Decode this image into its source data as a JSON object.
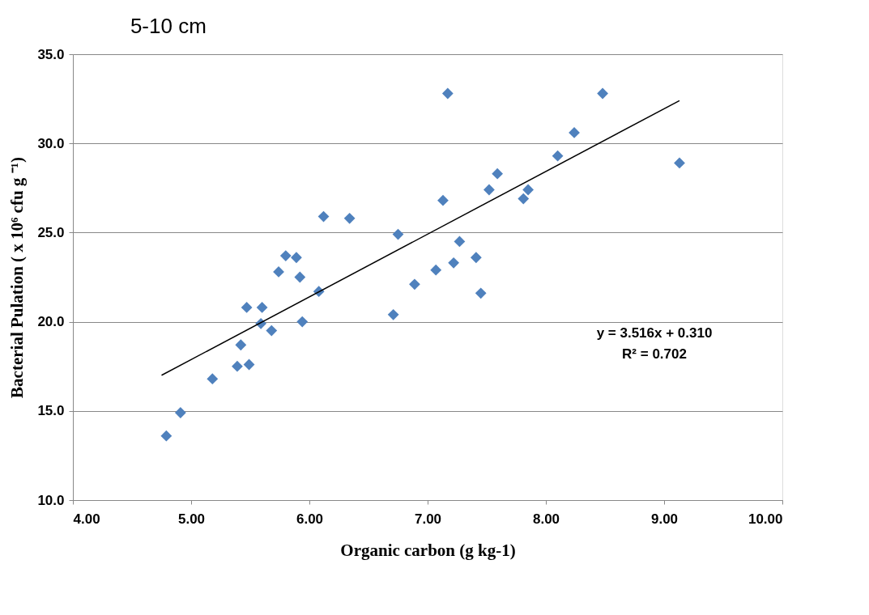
{
  "chart_data": {
    "type": "scatter",
    "title": "5-10 cm",
    "xlabel": "Organic carbon (g kg-1)",
    "ylabel": "Bacterial Pulation ( x 10⁶ cfu g ⁻¹)",
    "series": [
      {
        "color": "#4f81bd",
        "marker": "diamond",
        "x": [
          4.79,
          4.91,
          5.18,
          5.39,
          5.49,
          5.42,
          5.47,
          5.6,
          5.59,
          5.68,
          5.94,
          6.08,
          5.74,
          5.92,
          5.8,
          5.89,
          6.12,
          6.34,
          6.75,
          6.71,
          7.17,
          8.48,
          8.24,
          8.1,
          9.13,
          7.59,
          7.52,
          7.85,
          7.81,
          7.13,
          7.27,
          7.41,
          7.22,
          7.07,
          6.89,
          7.45
        ],
        "values": [
          13.6,
          14.9,
          16.8,
          17.5,
          17.6,
          18.7,
          20.8,
          20.8,
          19.9,
          19.5,
          20.0,
          21.7,
          22.8,
          22.5,
          23.7,
          23.6,
          25.9,
          25.8,
          24.9,
          20.4,
          32.8,
          32.8,
          30.6,
          29.3,
          28.9,
          28.3,
          27.4,
          27.4,
          26.9,
          26.8,
          24.5,
          23.6,
          23.3,
          22.9,
          22.1,
          21.6
        ]
      },
      {
        "type": "line",
        "color": "#000000",
        "marker": "none",
        "line_style": "solid",
        "x": [
          4.75,
          9.13
        ],
        "values": [
          17.0,
          32.4
        ]
      }
    ],
    "xlim": [
      4,
      10
    ],
    "xticks": [
      {
        "value": 4,
        "label": "4.00"
      },
      {
        "value": 5,
        "label": "5.00"
      },
      {
        "value": 6,
        "label": "6.00"
      },
      {
        "value": 7,
        "label": "7.00"
      },
      {
        "value": 8,
        "label": "8.00"
      },
      {
        "value": 9,
        "label": "9.00"
      },
      {
        "value": 10,
        "label": "10.00"
      }
    ],
    "ylim": [
      10,
      35
    ],
    "yticks": [
      {
        "value": 10,
        "label": "10.0"
      },
      {
        "value": 15,
        "label": "15.0"
      },
      {
        "value": 20,
        "label": "20.0"
      },
      {
        "value": 25,
        "label": "25.0"
      },
      {
        "value": 30,
        "label": "30.0"
      },
      {
        "value": 35,
        "label": "35.0"
      }
    ],
    "grid": "y",
    "annotations": [
      "y = 3.516x + 0.310",
      "R² = 0.702"
    ]
  }
}
